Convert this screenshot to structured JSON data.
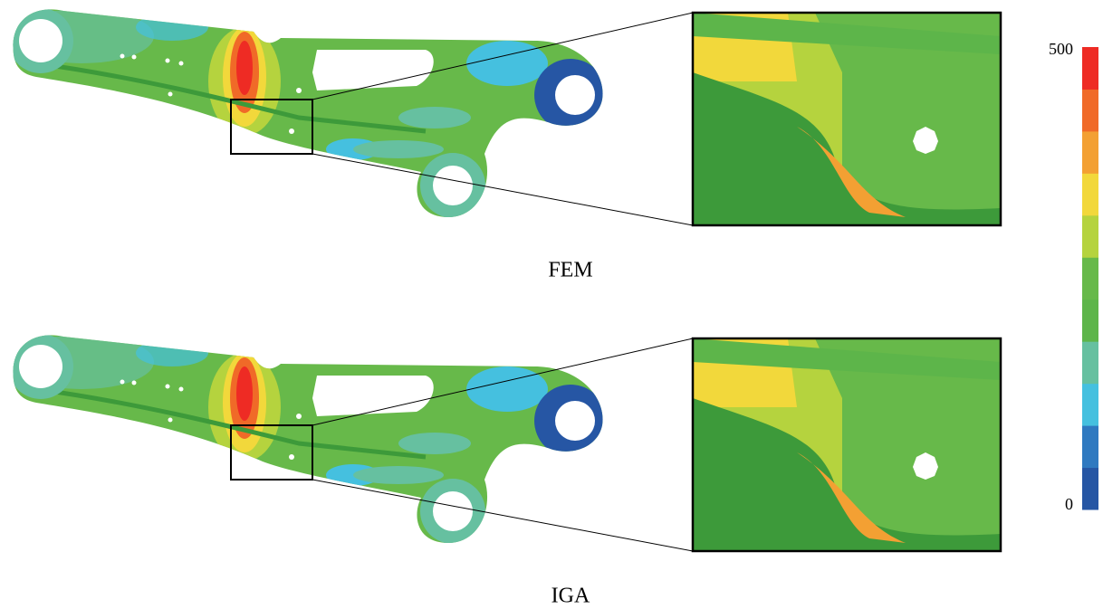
{
  "panels": [
    {
      "label": "FEM"
    },
    {
      "label": "IGA"
    }
  ],
  "colorbar": {
    "ticks": [
      0,
      500
    ],
    "colors": [
      "#2656a4",
      "#2f79c0",
      "#45c0df",
      "#66c0a0",
      "#5db54a",
      "#67b94a",
      "#b5d33e",
      "#f2d83b",
      "#f3a033",
      "#f06a28",
      "#ee2b24"
    ]
  }
}
